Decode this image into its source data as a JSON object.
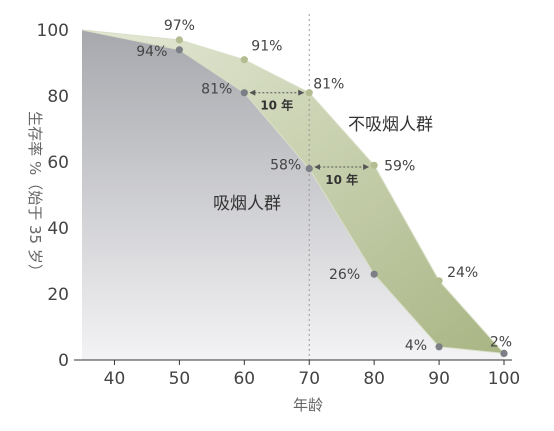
{
  "chart_data": {
    "type": "area",
    "xlabel": "年龄",
    "ylabel": "生存率 %（始于 35 岁）",
    "xlim": [
      35,
      100
    ],
    "ylim": [
      0,
      100
    ],
    "x_ticks": [
      "40",
      "50",
      "60",
      "70",
      "80",
      "90",
      "100"
    ],
    "y_ticks": [
      "0",
      "20",
      "40",
      "60",
      "80",
      "100"
    ],
    "reference_line_x": 70,
    "series": [
      {
        "name": "不吸烟人群",
        "color": "#b3bf8f",
        "points": [
          {
            "x": 35,
            "y": 100
          },
          {
            "x": 50,
            "y": 97,
            "label": "97%"
          },
          {
            "x": 60,
            "y": 91,
            "label": "91%"
          },
          {
            "x": 70,
            "y": 81,
            "label": "81%"
          },
          {
            "x": 80,
            "y": 59,
            "label": "59%"
          },
          {
            "x": 90,
            "y": 24,
            "label": "24%"
          },
          {
            "x": 100,
            "y": 2,
            "label": "2%"
          }
        ]
      },
      {
        "name": "吸烟人群",
        "color": "#7d7f86",
        "points": [
          {
            "x": 35,
            "y": 100
          },
          {
            "x": 50,
            "y": 94,
            "label": "94%"
          },
          {
            "x": 60,
            "y": 81,
            "label": "81%"
          },
          {
            "x": 70,
            "y": 58,
            "label": "58%"
          },
          {
            "x": 80,
            "y": 26,
            "label": "26%"
          },
          {
            "x": 90,
            "y": 4,
            "label": "4%"
          },
          {
            "x": 100,
            "y": 2
          }
        ]
      }
    ],
    "annotations": [
      {
        "text": "10 年",
        "from": {
          "x": 60,
          "y": 81
        },
        "to": {
          "x": 70,
          "y": 81
        }
      },
      {
        "text": "10 年",
        "from": {
          "x": 70,
          "y": 58
        },
        "to": {
          "x": 80,
          "y": 59
        }
      }
    ]
  }
}
